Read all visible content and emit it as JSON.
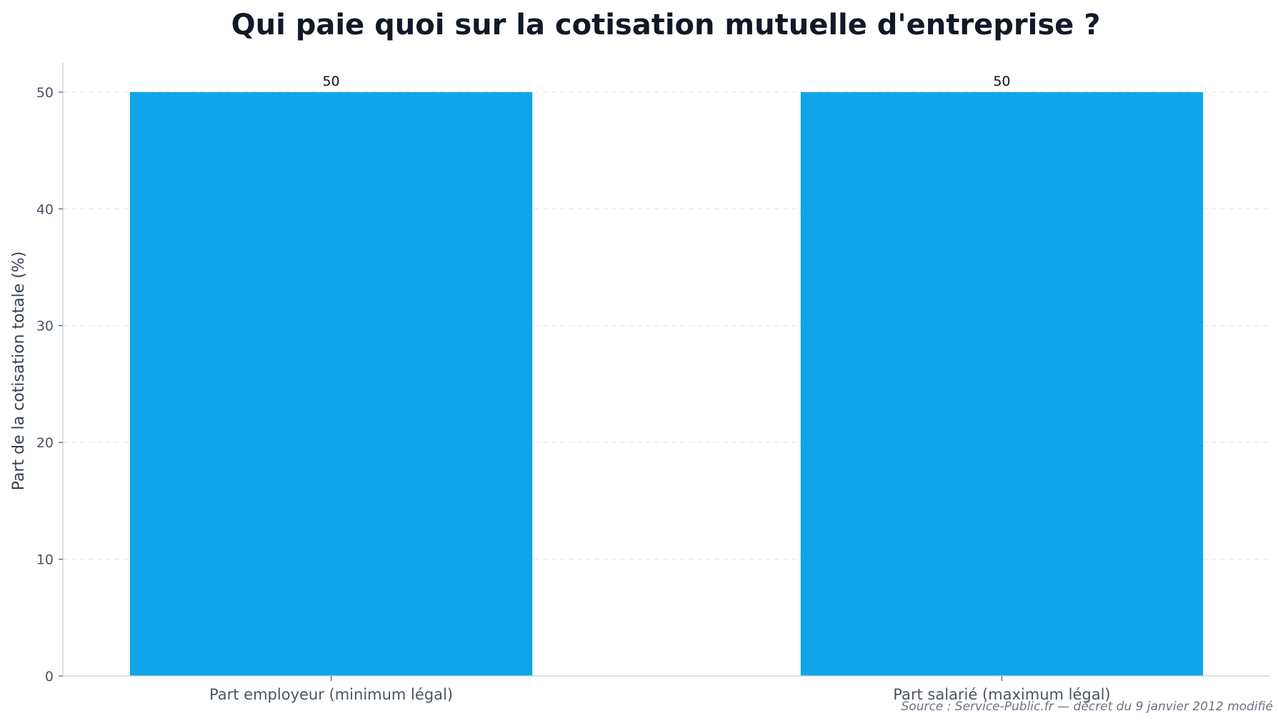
{
  "chart_data": {
    "type": "bar",
    "title": "Qui paie quoi sur la cotisation mutuelle d'entreprise ?",
    "xlabel": "",
    "ylabel": "Part de la cotisation totale (%)",
    "categories": [
      "Part employeur (minimum légal)",
      "Part salarié (maximum légal)"
    ],
    "values": [
      50,
      50
    ],
    "data_labels": [
      "50",
      "50"
    ],
    "ylim": [
      0,
      52.5
    ],
    "yticks": [
      0,
      10,
      20,
      30,
      40,
      50
    ],
    "grid": "horizontal dashed",
    "bar_color": "#10a5e8",
    "source": "Source : Service-Public.fr — décret du 9 janvier 2012 modifié"
  }
}
